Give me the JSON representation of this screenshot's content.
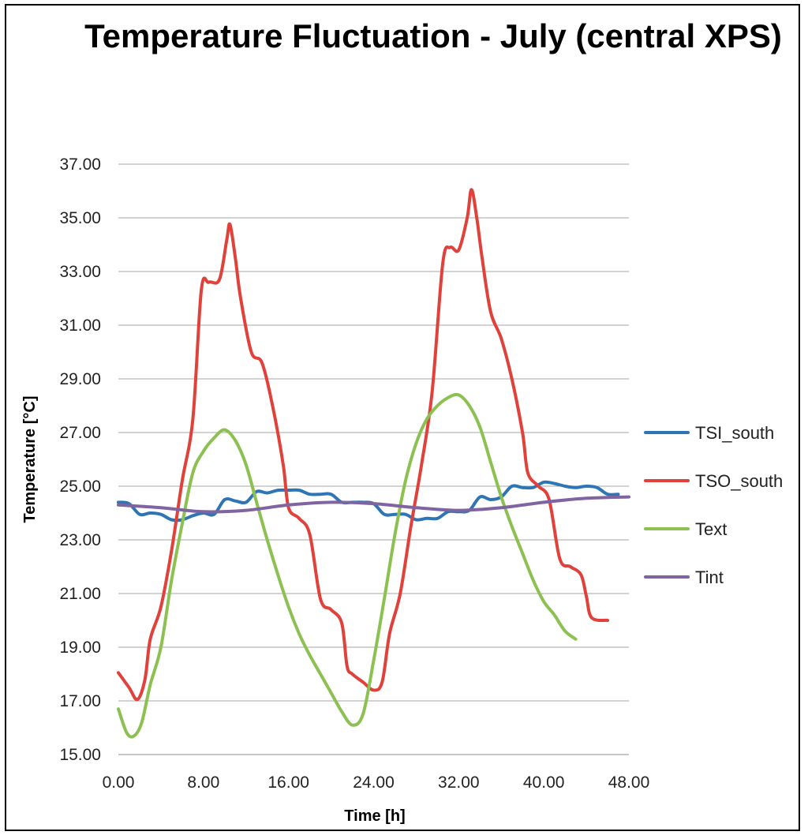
{
  "chart_data": {
    "type": "line",
    "title": "Temperature Fluctuation - July (central XPS)",
    "xlabel": "Time [h]",
    "ylabel": "Temperature [°C]",
    "xlim": [
      0,
      48
    ],
    "ylim": [
      15,
      37
    ],
    "x_ticks": [
      0,
      8,
      16,
      24,
      32,
      40,
      48
    ],
    "x_tick_labels": [
      "0.00",
      "8.00",
      "16.00",
      "24.00",
      "32.00",
      "40.00",
      "48.00"
    ],
    "y_ticks": [
      15,
      17,
      19,
      21,
      23,
      25,
      27,
      29,
      31,
      33,
      35,
      37
    ],
    "y_tick_labels": [
      "15.00",
      "17.00",
      "19.00",
      "21.00",
      "23.00",
      "25.00",
      "27.00",
      "29.00",
      "31.00",
      "33.00",
      "35.00",
      "37.00"
    ],
    "grid": true,
    "legend_position": "right",
    "series": [
      {
        "name": "TSI_south",
        "color": "#2e75b6",
        "points": [
          [
            0,
            24.4
          ],
          [
            1,
            24.35
          ],
          [
            2,
            23.95
          ],
          [
            3,
            24.0
          ],
          [
            4,
            23.95
          ],
          [
            5,
            23.75
          ],
          [
            6,
            23.75
          ],
          [
            7,
            23.9
          ],
          [
            8,
            24.0
          ],
          [
            9,
            23.95
          ],
          [
            10,
            24.5
          ],
          [
            11,
            24.45
          ],
          [
            12,
            24.4
          ],
          [
            13,
            24.8
          ],
          [
            14,
            24.75
          ],
          [
            15,
            24.85
          ],
          [
            16,
            24.85
          ],
          [
            17,
            24.85
          ],
          [
            18,
            24.7
          ],
          [
            19,
            24.7
          ],
          [
            20,
            24.7
          ],
          [
            21,
            24.4
          ],
          [
            22,
            24.4
          ],
          [
            23,
            24.4
          ],
          [
            24,
            24.35
          ],
          [
            25,
            23.95
          ],
          [
            26,
            23.95
          ],
          [
            27,
            23.95
          ],
          [
            28,
            23.75
          ],
          [
            29,
            23.8
          ],
          [
            30,
            23.8
          ],
          [
            31,
            24.05
          ],
          [
            32,
            24.05
          ],
          [
            33,
            24.1
          ],
          [
            34,
            24.6
          ],
          [
            35,
            24.5
          ],
          [
            36,
            24.6
          ],
          [
            37,
            25.0
          ],
          [
            38,
            24.95
          ],
          [
            39,
            24.95
          ],
          [
            40,
            25.15
          ],
          [
            41,
            25.1
          ],
          [
            42,
            25.0
          ],
          [
            43,
            24.95
          ],
          [
            44,
            25.0
          ],
          [
            45,
            24.95
          ],
          [
            46,
            24.7
          ],
          [
            47,
            24.7
          ]
        ]
      },
      {
        "name": "TSO_south",
        "color": "#e0413b",
        "points": [
          [
            0,
            18.05
          ],
          [
            1,
            17.5
          ],
          [
            1.8,
            17.05
          ],
          [
            2.5,
            17.8
          ],
          [
            3,
            19.3
          ],
          [
            4,
            20.5
          ],
          [
            5,
            22.6
          ],
          [
            6,
            25.2
          ],
          [
            7,
            27.5
          ],
          [
            7.8,
            32.3
          ],
          [
            8.5,
            32.6
          ],
          [
            9.5,
            32.7
          ],
          [
            10.2,
            34.2
          ],
          [
            10.5,
            34.75
          ],
          [
            11,
            33.5
          ],
          [
            11.5,
            32.0
          ],
          [
            12.5,
            30.0
          ],
          [
            13.5,
            29.6
          ],
          [
            14.5,
            28.0
          ],
          [
            15.5,
            25.8
          ],
          [
            16,
            24.2
          ],
          [
            17,
            23.8
          ],
          [
            18,
            23.2
          ],
          [
            19,
            20.8
          ],
          [
            20,
            20.4
          ],
          [
            21,
            19.9
          ],
          [
            21.5,
            18.3
          ],
          [
            22,
            18.0
          ],
          [
            23,
            17.7
          ],
          [
            24,
            17.4
          ],
          [
            24.8,
            17.7
          ],
          [
            25.5,
            19.5
          ],
          [
            26.5,
            21.0
          ],
          [
            27.5,
            23.5
          ],
          [
            28.5,
            25.8
          ],
          [
            29.5,
            28.5
          ],
          [
            30.5,
            33.3
          ],
          [
            31.2,
            33.9
          ],
          [
            32,
            33.8
          ],
          [
            32.8,
            35.0
          ],
          [
            33.2,
            36.05
          ],
          [
            33.7,
            35.0
          ],
          [
            34.2,
            33.5
          ],
          [
            35,
            31.5
          ],
          [
            36,
            30.5
          ],
          [
            37,
            29.0
          ],
          [
            38,
            27.0
          ],
          [
            38.5,
            25.5
          ],
          [
            39.5,
            25.0
          ],
          [
            40.5,
            24.5
          ],
          [
            41.5,
            22.3
          ],
          [
            42.5,
            22.0
          ],
          [
            43.5,
            21.7
          ],
          [
            44,
            20.9
          ],
          [
            44.5,
            20.1
          ],
          [
            46,
            20.0
          ]
        ]
      },
      {
        "name": "Text",
        "color": "#8cc051",
        "points": [
          [
            0,
            16.7
          ],
          [
            0.8,
            15.8
          ],
          [
            1.5,
            15.7
          ],
          [
            2.2,
            16.2
          ],
          [
            3,
            17.6
          ],
          [
            4,
            19.0
          ],
          [
            5,
            21.5
          ],
          [
            6,
            23.6
          ],
          [
            7,
            25.5
          ],
          [
            8,
            26.3
          ],
          [
            9,
            26.8
          ],
          [
            10,
            27.1
          ],
          [
            11,
            26.7
          ],
          [
            12,
            25.8
          ],
          [
            13,
            24.4
          ],
          [
            14,
            23.0
          ],
          [
            15,
            21.7
          ],
          [
            16,
            20.5
          ],
          [
            17,
            19.5
          ],
          [
            18,
            18.7
          ],
          [
            19,
            18.0
          ],
          [
            20,
            17.3
          ],
          [
            21,
            16.6
          ],
          [
            22,
            16.1
          ],
          [
            23,
            16.5
          ],
          [
            24,
            18.5
          ],
          [
            25,
            20.8
          ],
          [
            26,
            23.2
          ],
          [
            27,
            25.2
          ],
          [
            28,
            26.6
          ],
          [
            29,
            27.5
          ],
          [
            30,
            28.0
          ],
          [
            31,
            28.3
          ],
          [
            32,
            28.4
          ],
          [
            33,
            28.0
          ],
          [
            34,
            27.2
          ],
          [
            35,
            25.9
          ],
          [
            36,
            24.6
          ],
          [
            37,
            23.5
          ],
          [
            38,
            22.5
          ],
          [
            39,
            21.5
          ],
          [
            40,
            20.7
          ],
          [
            41,
            20.2
          ],
          [
            42,
            19.6
          ],
          [
            43,
            19.3
          ]
        ]
      },
      {
        "name": "Tint",
        "color": "#8064a2",
        "points": [
          [
            0,
            24.3
          ],
          [
            4,
            24.2
          ],
          [
            8,
            24.05
          ],
          [
            12,
            24.1
          ],
          [
            16,
            24.3
          ],
          [
            20,
            24.4
          ],
          [
            24,
            24.35
          ],
          [
            28,
            24.2
          ],
          [
            32,
            24.1
          ],
          [
            36,
            24.2
          ],
          [
            40,
            24.4
          ],
          [
            44,
            24.55
          ],
          [
            48,
            24.6
          ]
        ]
      }
    ]
  }
}
